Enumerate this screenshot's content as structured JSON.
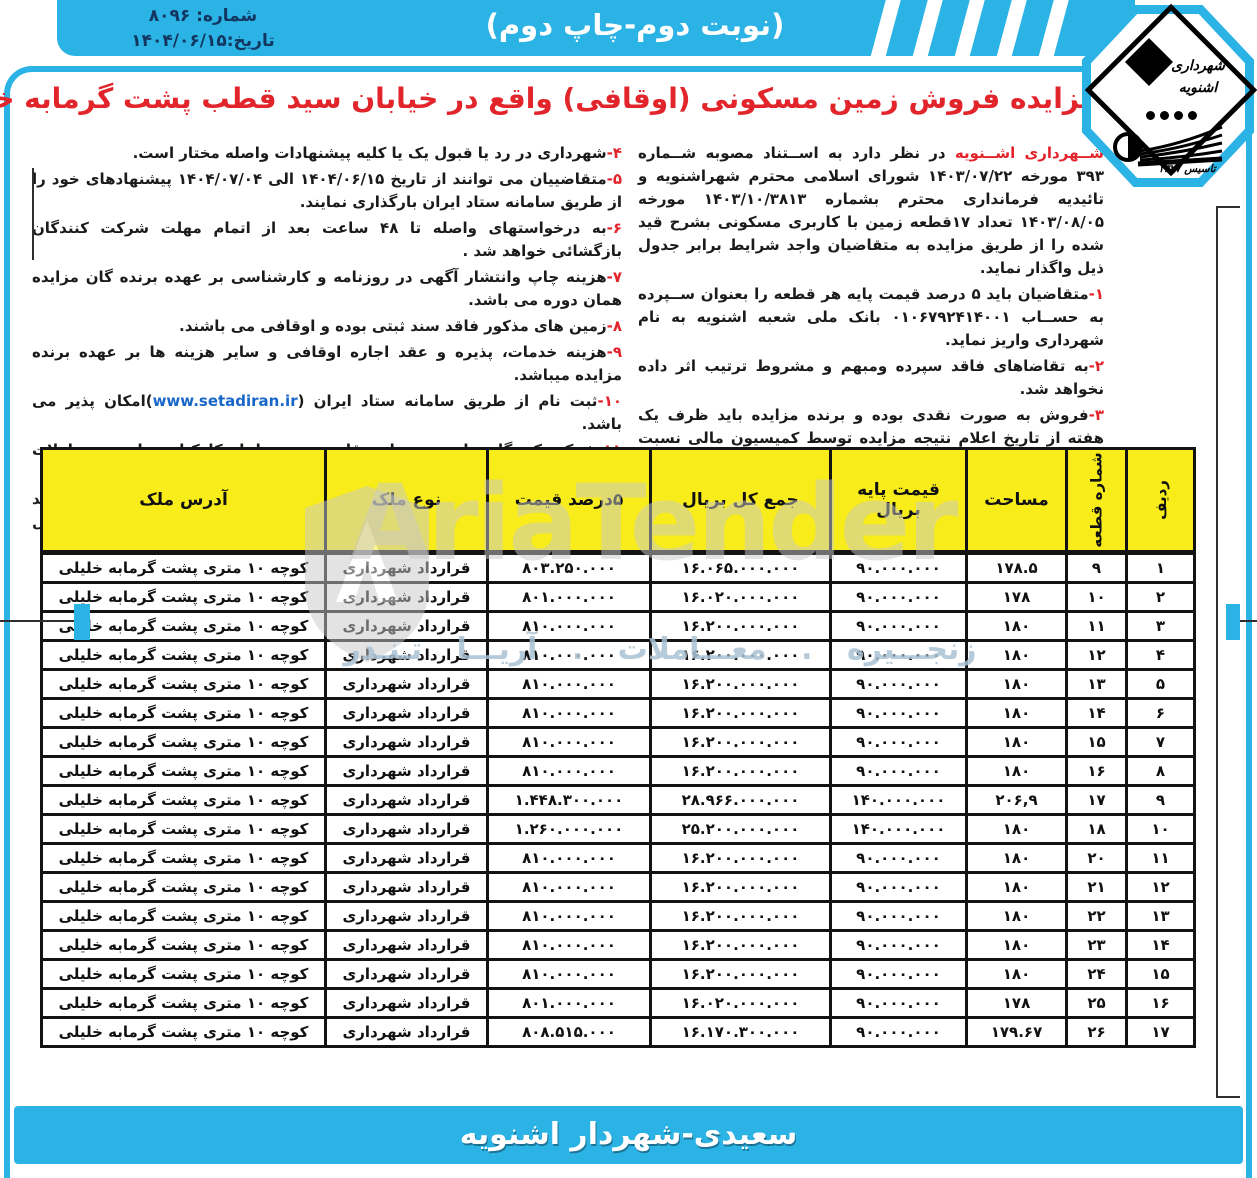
{
  "meta": {
    "number": "شماره: ۸۰۹۶",
    "date": "تاریخ:۱۴۰۴/۰۶/۱۵"
  },
  "header": {
    "edition": "(نوبت دوم-چاپ دوم)",
    "title": "آگهی مزایده فروش زمین مسکونی (اوقافی) واقع در خیابان سید قطب پشت گرمابه خلیلی شهرداری اشنویه"
  },
  "logo": {
    "name_line1": "شهرداری",
    "name_line2": "اشنویه",
    "established": "تاسیس ۱۳۲۷"
  },
  "notice": {
    "right_items": [
      {
        "red": "شــهرداری اشــنویه ",
        "text": "در نظر دارد به اســتناد مصوبه شــماره ۳۹۳ مورخه ۱۴۰۳/۰۷/۲۲ شورای اسلامی محترم شهراشنویه و تائیدیه فرمانداری محترم بشماره ۱۴۰۳/۱۰/۳۸۱۳ مورخه ۱۴۰۳/۰۸/۰۵ تعداد ۱۷قطعه زمین با کاربری مسکونی بشرح قید شده را از طریق مزایده به متقاضیان واجد شرایط برابر جدول ذیل واگذار نماید."
      },
      {
        "red": "۱-",
        "text": "متقاضیان باید ۵ درصد قیمت پایه هر قطعه را بعنوان ســپرده به حســاب ۰۱۰۶۷۹۲۴۱۴۰۰۱ بانک ملی شعبه اشنویه به نام شهرداری واریز نماید."
      },
      {
        "red": "۲-",
        "text": "به تقاضاهای فاقد سپرده ومبهم و مشروط ترتیب اثر داده نخواهد شد."
      },
      {
        "red": "۳-",
        "text": "فروش به صورت نقدی بوده و برنده مزایده باید ظرف یک هفته از تاریخ اعلام نتیجه مزایده توسط کمیسیون مالی نسبت به پرداخت قیمت قطعی ملک اقدام در غیر این صورت با نفر بعدی تا نفر سوم به ترتیب اولویت قرارداد منعقد و ســپرده نفرات انصراف دهنده به نفع شــهرداری ضبط خواهد شد و به هیچ عنوان مسترد نخواهد شد."
      }
    ],
    "left_items": [
      {
        "red": "۴-",
        "text": "شهرداری در رد یا قبول یک یا کلیه پیشنهادات واصله مختار است."
      },
      {
        "red": "۵-",
        "text": "متقاضییان می توانند از تاریخ ۱۴۰۴/۰۶/۱۵ الی ۱۴۰۴/۰۷/۰۴ پیشنهادهای خود را از طریق سامانه ستاد ایران بارگذاری نمایند."
      },
      {
        "red": "۶-",
        "text": "به درخواستهای واصله تا ۴۸ ساعت بعد از اتمام مهلت شرکت کنندگان بازگشائی خواهد شد ."
      },
      {
        "red": "۷-",
        "text": "هزینه چاپ وانتشار آگهی در روزنامه و کارشناسی بر عهده برنده گان مزایده همان دوره می باشد."
      },
      {
        "red": "۸-",
        "text": "زمین های مذکور فاقد سند ثبتی بوده و اوقافی می باشند."
      },
      {
        "red": "۹-",
        "text": "هزینه خدمات، پذیره و عقد اجاره اوقافی و سایر هزینه ها بر عهده برنده مزایده میباشد."
      },
      {
        "red": "۱۰-",
        "text": "ثبت نام از طریق سامانه ستاد ایران (",
        "link": "www.setadiran.ir",
        "post": ")امکان پذیر می باشد."
      },
      {
        "red": "۱۱-",
        "text": "شرکت کنندگان ملزم به رعایت قانون منع مداخله کارکنان دولت در معاملات می باشند."
      },
      {
        "red": "۱۲-",
        "text": "متقاضیان می توانند جهت کســب اطلاعات بیشتر و دریافت کروکی به واحد املاک یا امور مالی شهرداری مراجعه یا با شماره تلفن ۴۴۶۲۵۶۹۳ تماس حاصل فرمایند."
      }
    ]
  },
  "table": {
    "headers": [
      "ردیف",
      "شماره قطعه",
      "مساحت",
      "قیمت پایه بریال",
      "جمع کل بریال",
      "۵درصد قیمت",
      "نوع ملک",
      "آدرس ملک"
    ],
    "rows": [
      [
        "۱",
        "۹",
        "۱۷۸.۵",
        "۹۰.۰۰۰.۰۰۰",
        "۱۶.۰۶۵.۰۰۰.۰۰۰",
        "۸۰۳.۲۵۰.۰۰۰",
        "قرارداد شهرداری",
        "کوچه ۱۰ متری پشت گرمابه خلیلی"
      ],
      [
        "۲",
        "۱۰",
        "۱۷۸",
        "۹۰.۰۰۰.۰۰۰",
        "۱۶.۰۲۰.۰۰۰.۰۰۰",
        "۸۰۱.۰۰۰.۰۰۰",
        "قرارداد شهرداری",
        "کوچه ۱۰ متری پشت گرمابه خلیلی"
      ],
      [
        "۳",
        "۱۱",
        "۱۸۰",
        "۹۰.۰۰۰.۰۰۰",
        "۱۶.۲۰۰.۰۰۰.۰۰۰",
        "۸۱۰.۰۰۰.۰۰۰",
        "قرارداد شهرداری",
        "کوچه ۱۰ متری پشت گرمابه خلیلی"
      ],
      [
        "۴",
        "۱۲",
        "۱۸۰",
        "۹۰.۰۰۰.۰۰۰",
        "۱۶.۲۰۰.۰۰۰.۰۰۰",
        "۸۱۰.۰۰۰.۰۰۰",
        "قرارداد شهرداری",
        "کوچه ۱۰ متری پشت گرمابه خلیلی"
      ],
      [
        "۵",
        "۱۳",
        "۱۸۰",
        "۹۰.۰۰۰.۰۰۰",
        "۱۶.۲۰۰.۰۰۰.۰۰۰",
        "۸۱۰.۰۰۰.۰۰۰",
        "قرارداد شهرداری",
        "کوچه ۱۰ متری پشت گرمابه خلیلی"
      ],
      [
        "۶",
        "۱۴",
        "۱۸۰",
        "۹۰.۰۰۰.۰۰۰",
        "۱۶.۲۰۰.۰۰۰.۰۰۰",
        "۸۱۰.۰۰۰.۰۰۰",
        "قرارداد شهرداری",
        "کوچه ۱۰ متری پشت گرمابه خلیلی"
      ],
      [
        "۷",
        "۱۵",
        "۱۸۰",
        "۹۰.۰۰۰.۰۰۰",
        "۱۶.۲۰۰.۰۰۰.۰۰۰",
        "۸۱۰.۰۰۰.۰۰۰",
        "قرارداد شهرداری",
        "کوچه ۱۰ متری پشت گرمابه خلیلی"
      ],
      [
        "۸",
        "۱۶",
        "۱۸۰",
        "۹۰.۰۰۰.۰۰۰",
        "۱۶.۲۰۰.۰۰۰.۰۰۰",
        "۸۱۰.۰۰۰.۰۰۰",
        "قرارداد شهرداری",
        "کوچه ۱۰ متری پشت گرمابه خلیلی"
      ],
      [
        "۹",
        "۱۷",
        "۲۰۶,۹",
        "۱۴۰.۰۰۰.۰۰۰",
        "۲۸.۹۶۶.۰۰۰.۰۰۰",
        "۱.۴۴۸.۳۰۰.۰۰۰",
        "قرارداد شهرداری",
        "کوچه ۱۰ متری پشت گرمابه خلیلی"
      ],
      [
        "۱۰",
        "۱۸",
        "۱۸۰",
        "۱۴۰.۰۰۰.۰۰۰",
        "۲۵.۲۰۰.۰۰۰.۰۰۰",
        "۱.۲۶۰.۰۰۰.۰۰۰",
        "قرارداد شهرداری",
        "کوچه ۱۰ متری پشت گرمابه خلیلی"
      ],
      [
        "۱۱",
        "۲۰",
        "۱۸۰",
        "۹۰.۰۰۰.۰۰۰",
        "۱۶.۲۰۰.۰۰۰.۰۰۰",
        "۸۱۰.۰۰۰.۰۰۰",
        "قرارداد شهرداری",
        "کوچه ۱۰ متری پشت گرمابه خلیلی"
      ],
      [
        "۱۲",
        "۲۱",
        "۱۸۰",
        "۹۰.۰۰۰.۰۰۰",
        "۱۶.۲۰۰.۰۰۰.۰۰۰",
        "۸۱۰.۰۰۰.۰۰۰",
        "قرارداد شهرداری",
        "کوچه ۱۰ متری پشت گرمابه خلیلی"
      ],
      [
        "۱۳",
        "۲۲",
        "۱۸۰",
        "۹۰.۰۰۰.۰۰۰",
        "۱۶.۲۰۰.۰۰۰.۰۰۰",
        "۸۱۰.۰۰۰.۰۰۰",
        "قرارداد شهرداری",
        "کوچه ۱۰ متری پشت گرمابه خلیلی"
      ],
      [
        "۱۴",
        "۲۳",
        "۱۸۰",
        "۹۰.۰۰۰.۰۰۰",
        "۱۶.۲۰۰.۰۰۰.۰۰۰",
        "۸۱۰.۰۰۰.۰۰۰",
        "قرارداد شهرداری",
        "کوچه ۱۰ متری پشت گرمابه خلیلی"
      ],
      [
        "۱۵",
        "۲۴",
        "۱۸۰",
        "۹۰.۰۰۰.۰۰۰",
        "۱۶.۲۰۰.۰۰۰.۰۰۰",
        "۸۱۰.۰۰۰.۰۰۰",
        "قرارداد شهرداری",
        "کوچه ۱۰ متری پشت گرمابه خلیلی"
      ],
      [
        "۱۶",
        "۲۵",
        "۱۷۸",
        "۹۰.۰۰۰.۰۰۰",
        "۱۶.۰۲۰.۰۰۰.۰۰۰",
        "۸۰۱.۰۰۰.۰۰۰",
        "قرارداد شهرداری",
        "کوچه ۱۰ متری پشت گرمابه خلیلی"
      ],
      [
        "۱۷",
        "۲۶",
        "۱۷۹.۶۷",
        "۹۰.۰۰۰.۰۰۰",
        "۱۶.۱۷۰.۳۰۰.۰۰۰",
        "۸۰۸.۵۱۵.۰۰۰",
        "قرارداد شهرداری",
        "کوچه ۱۰ متری پشت گرمابه خلیلی"
      ]
    ]
  },
  "footer": {
    "signature": "سعیدی-شهردار اشنویه"
  },
  "watermark": {
    "latin": "AriaTender",
    "persian": "زنجـــیره . معـــاملات . آریـــا تـنـدر"
  },
  "colors": {
    "accent_cyan": "#2bb3e6",
    "header_yellow": "#f8ec1b",
    "title_red": "#e2242b",
    "link_blue": "#1766c8",
    "numbox_navy": "#12365f",
    "watermark_gray": "#c9c9c9",
    "watermark_blue": "#aac2d3"
  }
}
